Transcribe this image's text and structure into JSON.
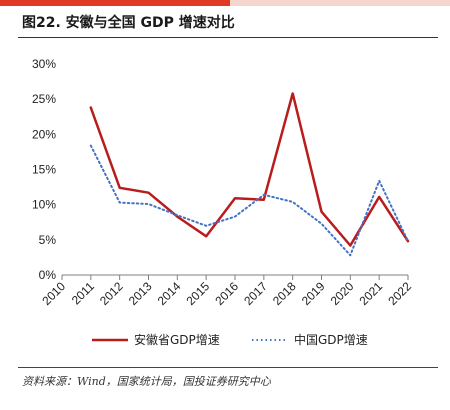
{
  "figure": {
    "title": "图22. 安徽与全国 GDP 增速对比",
    "source": "资料来源：Wind，国家统计局，国投证券研究中心"
  },
  "colors": {
    "accent_red": "#c00000",
    "top_bar_left": "#e03a24",
    "top_bar_right": "#f6d5cc",
    "series_anhui": "#b91c1c",
    "series_china": "#4472c4"
  },
  "chart_data": {
    "type": "line",
    "x": [
      "2010",
      "2011",
      "2012",
      "2013",
      "2014",
      "2015",
      "2016",
      "2017",
      "2018",
      "2019",
      "2020",
      "2021",
      "2022"
    ],
    "y_ticks": [
      "0%",
      "5%",
      "10%",
      "15%",
      "20%",
      "25%",
      "30%"
    ],
    "ylim": [
      0,
      30
    ],
    "grid": false,
    "legend_position": "bottom",
    "series": [
      {
        "name": "安徽省GDP增速",
        "style": "solid",
        "values": [
          null,
          23.8,
          12.4,
          11.7,
          8.3,
          5.5,
          10.9,
          10.7,
          25.8,
          9.0,
          4.2,
          11.1,
          4.8
        ]
      },
      {
        "name": "中国GDP增速",
        "style": "dotted",
        "values": [
          null,
          18.4,
          10.3,
          10.1,
          8.5,
          7.0,
          8.3,
          11.4,
          10.4,
          7.3,
          2.8,
          13.4,
          4.8
        ]
      }
    ]
  }
}
